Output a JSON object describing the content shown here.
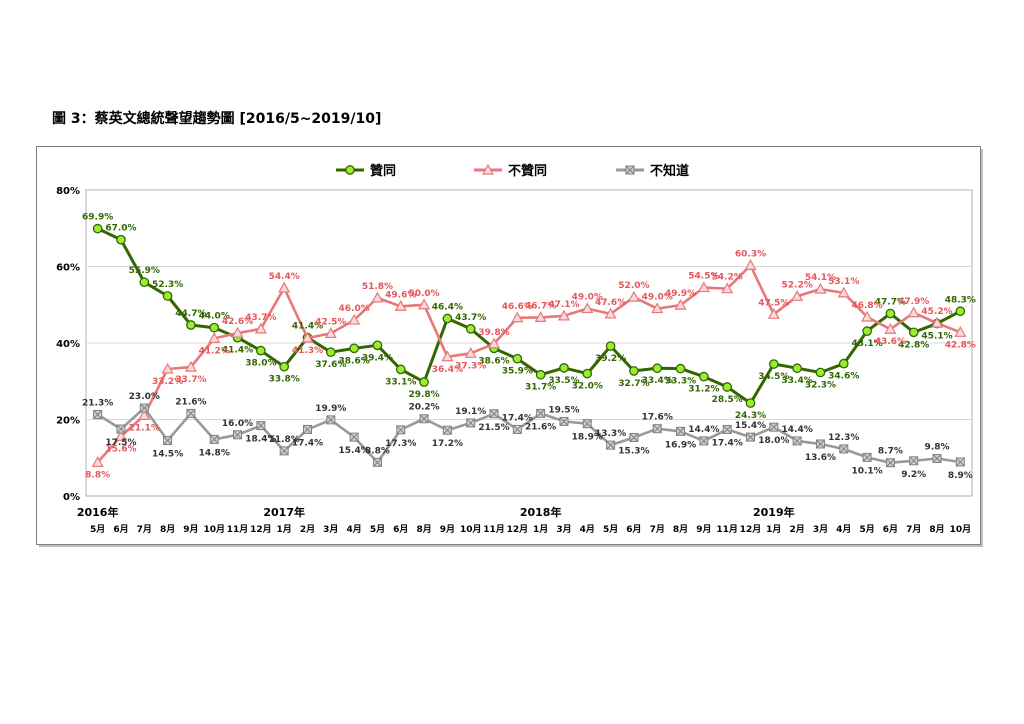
{
  "figure_title": "圖 3：蔡英文總統聲望趨勢圖  [2016/5~2019/10]",
  "chart_data": {
    "type": "line",
    "ylim": [
      0,
      80
    ],
    "yticks": [
      "0%",
      "20%",
      "40%",
      "60%",
      "80%"
    ],
    "grid": true,
    "legend_position": "top-center",
    "month_labels": [
      "5月",
      "6月",
      "7月",
      "8月",
      "9月",
      "10月",
      "11月",
      "12月",
      "1月",
      "2月",
      "3月",
      "4月",
      "5月",
      "6月",
      "8月",
      "9月",
      "10月",
      "11月",
      "12月",
      "1月",
      "3月",
      "4月",
      "5月",
      "6月",
      "7月",
      "8月",
      "9月",
      "11月",
      "12月",
      "1月",
      "2月",
      "3月",
      "4月",
      "5月",
      "6月",
      "7月",
      "8月",
      "10月"
    ],
    "year_labels": [
      {
        "label": "2016年",
        "index": 0
      },
      {
        "label": "2017年",
        "index": 8
      },
      {
        "label": "2018年",
        "index": 19
      },
      {
        "label": "2019年",
        "index": 29
      }
    ],
    "series": [
      {
        "name": "贊同",
        "color": "#336600",
        "marker": "circle",
        "values": [
          69.9,
          67.0,
          55.9,
          52.3,
          44.7,
          44.0,
          41.4,
          38.0,
          33.8,
          41.4,
          37.6,
          38.6,
          39.4,
          33.1,
          29.8,
          46.4,
          43.7,
          38.6,
          35.9,
          31.7,
          33.5,
          32.0,
          39.2,
          32.7,
          33.4,
          33.3,
          31.2,
          28.5,
          24.3,
          34.5,
          33.4,
          32.3,
          34.6,
          43.1,
          47.7,
          42.8,
          45.1,
          48.3
        ]
      },
      {
        "name": "不贊同",
        "color": "#E8777A",
        "marker": "triangle",
        "values": [
          8.8,
          15.6,
          21.1,
          33.2,
          33.7,
          41.2,
          42.6,
          43.7,
          54.4,
          41.3,
          42.5,
          46.0,
          51.8,
          49.6,
          50.0,
          36.4,
          37.3,
          39.8,
          46.6,
          46.7,
          47.1,
          49.0,
          47.6,
          52.0,
          49.0,
          49.9,
          54.5,
          54.2,
          60.3,
          47.5,
          52.2,
          54.1,
          53.1,
          46.8,
          43.6,
          47.9,
          45.2,
          42.8
        ]
      },
      {
        "name": "不知道",
        "color": "#999999",
        "marker": "x-square",
        "values": [
          21.3,
          17.5,
          23.0,
          14.5,
          21.6,
          14.8,
          16.0,
          18.4,
          11.8,
          17.4,
          19.9,
          15.4,
          8.8,
          17.3,
          20.2,
          17.2,
          19.1,
          21.5,
          17.4,
          21.6,
          19.5,
          18.9,
          13.3,
          15.3,
          17.6,
          16.9,
          14.4,
          17.4,
          15.4,
          18.0,
          14.4,
          13.6,
          12.3,
          10.1,
          8.7,
          9.2,
          9.8,
          8.9
        ]
      }
    ],
    "data_labels": [
      [
        "69.9%",
        "67.0%",
        "55.9%",
        "52.3%",
        "44.7%",
        "44.0%",
        "41.4%",
        "38.0%",
        "33.8%",
        "41.4%",
        "37.6%",
        "38.6%",
        "39.4%",
        "33.1%",
        "29.8%",
        "46.4%",
        "43.7%",
        "38.6%",
        "35.9%",
        "31.7%",
        "33.5%",
        "32.0%",
        "39.2%",
        "32.7%",
        "33.4%",
        "33.3%",
        "31.2%",
        "28.5%",
        "24.3%",
        "34.5%",
        "33.4%",
        "32.3%",
        "34.6%",
        "43.1%",
        "47.7%",
        "42.8%",
        "45.1%",
        "48.3%"
      ],
      [
        "8.8%",
        "15.6%",
        "21.1%",
        "33.2%",
        "33.7%",
        "41.2%",
        "42.6%",
        "43.7%",
        "54.4%",
        "41.3%",
        "42.5%",
        "46.0%",
        "51.8%",
        "49.6%",
        "50.0%",
        "36.4%",
        "37.3%",
        "39.8%",
        "46.6%",
        "46.7%",
        "47.1%",
        "49.0%",
        "47.6%",
        "52.0%",
        "49.0%",
        "49.9%",
        "54.5%",
        "54.2%",
        "60.3%",
        "47.5%",
        "52.2%",
        "54.1%",
        "53.1%",
        "46.8%",
        "43.6%",
        "47.9%",
        "45.2%",
        "42.8%"
      ],
      [
        "21.3%",
        "17.5%",
        "23.0%",
        "14.5%",
        "21.6%",
        "14.8%",
        "16.0%",
        "18.4%",
        "11.8%",
        "17.4%",
        "19.9%",
        "15.4%",
        "8.8%",
        "17.3%",
        "20.2%",
        "17.2%",
        "19.1%",
        "21.5%",
        "17.4%",
        "21.6%",
        "19.5%",
        "18.9%",
        "13.3%",
        "15.3%",
        "17.6%",
        "16.9%",
        "14.4%",
        "17.4%",
        "15.4%",
        "18.0%",
        "14.4%",
        "13.6%",
        "12.3%",
        "10.1%",
        "8.7%",
        "9.2%",
        "9.8%",
        "8.9%"
      ]
    ]
  }
}
